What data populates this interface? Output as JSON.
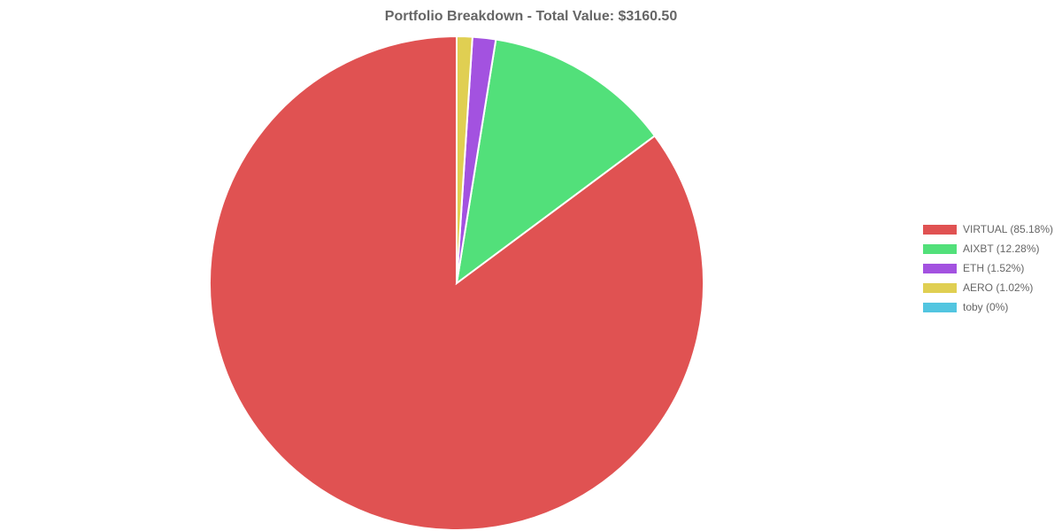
{
  "chart_data": {
    "type": "pie",
    "title": "Portfolio Breakdown - Total Value: $3160.50",
    "legend_position": "right",
    "slices": [
      {
        "label": "VIRTUAL (85.18%)",
        "value": 85.18,
        "color": "#e05252"
      },
      {
        "label": "AIXBT (12.28%)",
        "value": 12.28,
        "color": "#52e07a"
      },
      {
        "label": "ETH (1.52%)",
        "value": 1.52,
        "color": "#a352e0"
      },
      {
        "label": "AERO (1.02%)",
        "value": 1.02,
        "color": "#e0cf52"
      },
      {
        "label": "toby (0%)",
        "value": 0,
        "color": "#52c5e0"
      }
    ]
  }
}
